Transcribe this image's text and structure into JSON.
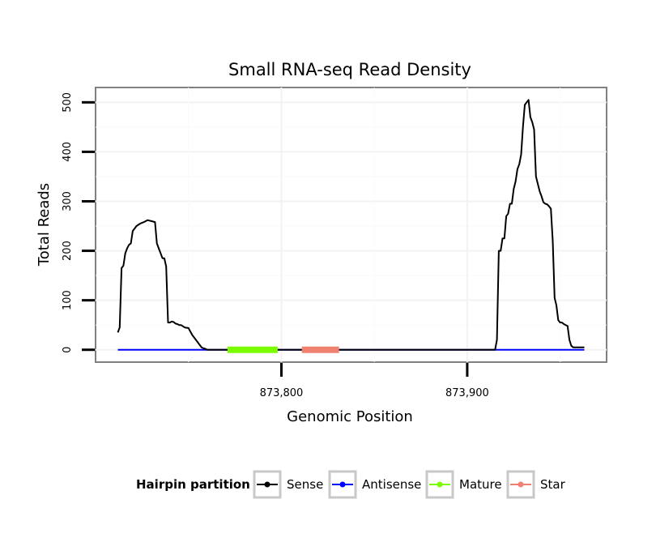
{
  "chart_data": {
    "type": "line",
    "title": "Small RNA-seq Read Density",
    "xlabel": "Genomic Position",
    "ylabel": "Total Reads",
    "xlim": [
      873700,
      873975
    ],
    "ylim": [
      -25,
      530
    ],
    "x_ticks": [
      873800,
      873900
    ],
    "x_tick_labels": [
      "873,800",
      "873,900"
    ],
    "y_ticks": [
      0,
      100,
      200,
      300,
      400,
      500
    ],
    "y_tick_labels": [
      "0",
      "100",
      "200",
      "300",
      "400",
      "500"
    ],
    "grid": true,
    "legend": {
      "title": "Hairpin partition",
      "position": "bottom",
      "entries": [
        {
          "label": "Sense",
          "color": "#000000"
        },
        {
          "label": "Antisense",
          "color": "#0000ff"
        },
        {
          "label": "Mature",
          "color": "#7cfc00"
        },
        {
          "label": "Star",
          "color": "#f08070"
        }
      ]
    },
    "series": [
      {
        "name": "Sense",
        "color": "#000000",
        "x": [
          873712,
          873713,
          873714,
          873715,
          873716,
          873717,
          873718,
          873719,
          873720,
          873721,
          873722,
          873724,
          873726,
          873728,
          873729,
          873730,
          873732,
          873733,
          873734,
          873736,
          873737,
          873738,
          873739,
          873740,
          873741,
          873742,
          873743,
          873744,
          873745,
          873746,
          873748,
          873750,
          873752,
          873754,
          873756,
          873757,
          873758,
          873759,
          873760,
          873761,
          873762,
          873763,
          873764,
          873765,
          873766,
          873768,
          873770,
          873780,
          873790,
          873800,
          873810,
          873820,
          873830,
          873840,
          873860,
          873880,
          873900,
          873910,
          873915,
          873916,
          873917,
          873918,
          873919,
          873920,
          873921,
          873922,
          873923,
          873924,
          873925,
          873926,
          873927,
          873928,
          873929,
          873930,
          873931,
          873932,
          873933,
          873934,
          873935,
          873936,
          873937,
          873938,
          873939,
          873940,
          873941,
          873942,
          873943,
          873944,
          873945,
          873946,
          873947,
          873948,
          873949,
          873950,
          873951,
          873952,
          873953,
          873954,
          873955,
          873956,
          873957,
          873958,
          873959,
          873960,
          873961,
          873962,
          873963
        ],
        "y": [
          35,
          45,
          165,
          170,
          195,
          205,
          212,
          215,
          240,
          245,
          250,
          255,
          258,
          262,
          261,
          260,
          258,
          215,
          205,
          185,
          185,
          168,
          55,
          55,
          57,
          56,
          53,
          52,
          50,
          50,
          45,
          44,
          30,
          20,
          10,
          5,
          3,
          2,
          0,
          0,
          0,
          0,
          0,
          0,
          0,
          0,
          0,
          0,
          0,
          0,
          0,
          0,
          0,
          0,
          0,
          0,
          0,
          0,
          0,
          20,
          200,
          200,
          225,
          225,
          270,
          275,
          295,
          295,
          325,
          340,
          365,
          375,
          395,
          450,
          495,
          500,
          505,
          470,
          460,
          445,
          350,
          335,
          320,
          310,
          298,
          295,
          294,
          290,
          285,
          220,
          105,
          90,
          60,
          55,
          55,
          52,
          50,
          48,
          20,
          8,
          5,
          5,
          5,
          5,
          5,
          5,
          5
        ]
      },
      {
        "name": "Antisense",
        "color": "#0000ff",
        "x": [
          873712,
          873963
        ],
        "y": [
          0,
          0
        ]
      }
    ],
    "segments": [
      {
        "name": "Mature",
        "color": "#7cfc00",
        "x": [
          873771,
          873798
        ],
        "y": 0
      },
      {
        "name": "Star",
        "color": "#f08070",
        "x": [
          873811,
          873831
        ],
        "y": 0
      }
    ]
  }
}
